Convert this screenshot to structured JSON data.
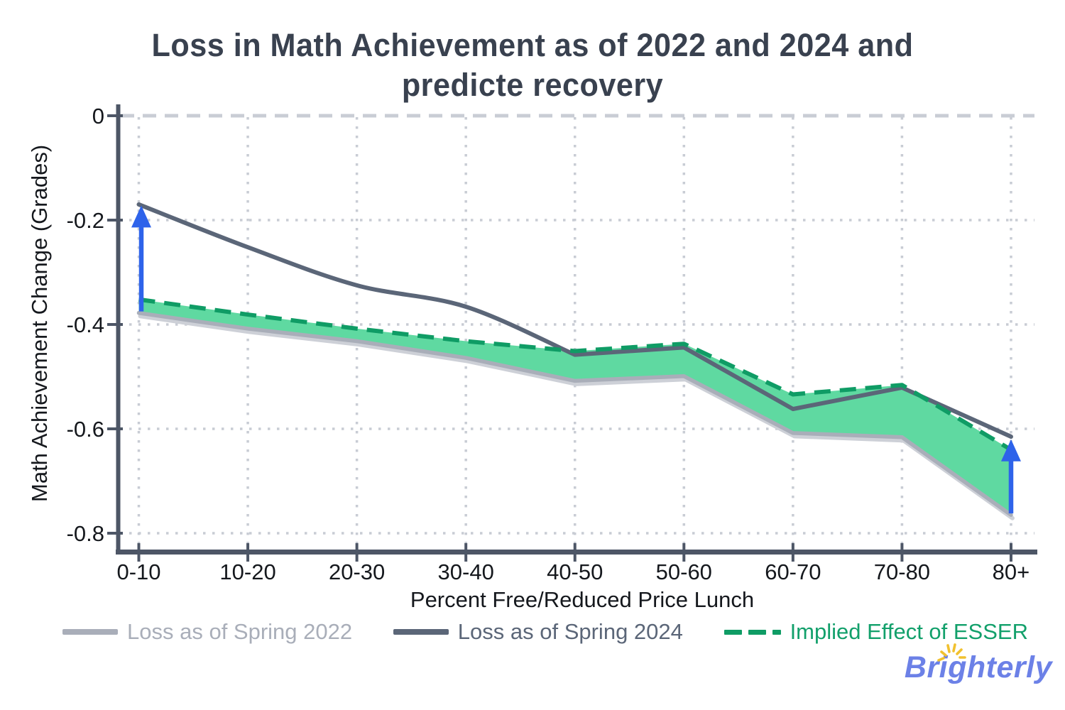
{
  "title": {
    "line1": "Loss in Math Achievement as of 2022 and 2024 and",
    "line2": "predicte recovery"
  },
  "chart_data": {
    "type": "line",
    "categories": [
      "0-10",
      "10-20",
      "20-30",
      "30-40",
      "40-50",
      "50-60",
      "60-70",
      "70-80",
      "80+"
    ],
    "series": [
      {
        "name": "Loss as of Spring 2022",
        "color": "#a9aeb9",
        "style": "solid",
        "values": [
          -0.378,
          -0.408,
          -0.432,
          -0.464,
          -0.508,
          -0.499,
          -0.608,
          -0.616,
          -0.765
        ]
      },
      {
        "name": "Loss as of Spring 2024",
        "color": "#5b6678",
        "style": "solid-smooth",
        "values": [
          -0.17,
          -0.252,
          -0.325,
          -0.366,
          -0.458,
          -0.444,
          -0.562,
          -0.521,
          -0.615
        ]
      },
      {
        "name": "Implied Effect of ESSER",
        "color": "#0f9c65",
        "style": "dashed",
        "values": [
          -0.352,
          -0.381,
          -0.408,
          -0.432,
          -0.451,
          -0.437,
          -0.534,
          -0.516,
          -0.64
        ]
      }
    ],
    "fill_between": {
      "upper": "Implied Effect of ESSER",
      "lower": "Loss as of Spring 2022",
      "color": "#5fd9a1"
    },
    "arrows": [
      {
        "category": "0-10",
        "from": -0.375,
        "to": -0.172,
        "color": "#2e63ea"
      },
      {
        "category": "80+",
        "from": -0.762,
        "to": -0.62,
        "color": "#2e63ea"
      }
    ],
    "xlabel": "Percent Free/Reduced Price Lunch",
    "ylabel": "Math Achievement Change (Grades)",
    "y_ticks": [
      0,
      -0.2,
      -0.4,
      -0.6,
      -0.8
    ],
    "y_tick_labels": [
      "0",
      "-0.2",
      "-0.4",
      "-0.6",
      "-0.8"
    ],
    "ylim": [
      -0.8,
      0
    ],
    "grid": "dotted",
    "zero_line": "dashed",
    "legend_position": "bottom"
  },
  "legend": {
    "items": [
      {
        "label": "Loss as of Spring 2022",
        "color": "#a9aeb9"
      },
      {
        "label": "Loss as of Spring 2024",
        "color": "#5b6678"
      },
      {
        "label": "Implied Effect of ESSER",
        "color": "#12a06b"
      }
    ]
  },
  "logo": {
    "text": "Brighterly",
    "accent_color": "#6c81e7",
    "sun_color": "#f1c12f"
  },
  "colors": {
    "axis": "#4d5666",
    "grid": "#c8ccd4",
    "fill_green": "#5fd9a1",
    "arrow_blue": "#2e63ea",
    "title_text": "#39414f"
  }
}
